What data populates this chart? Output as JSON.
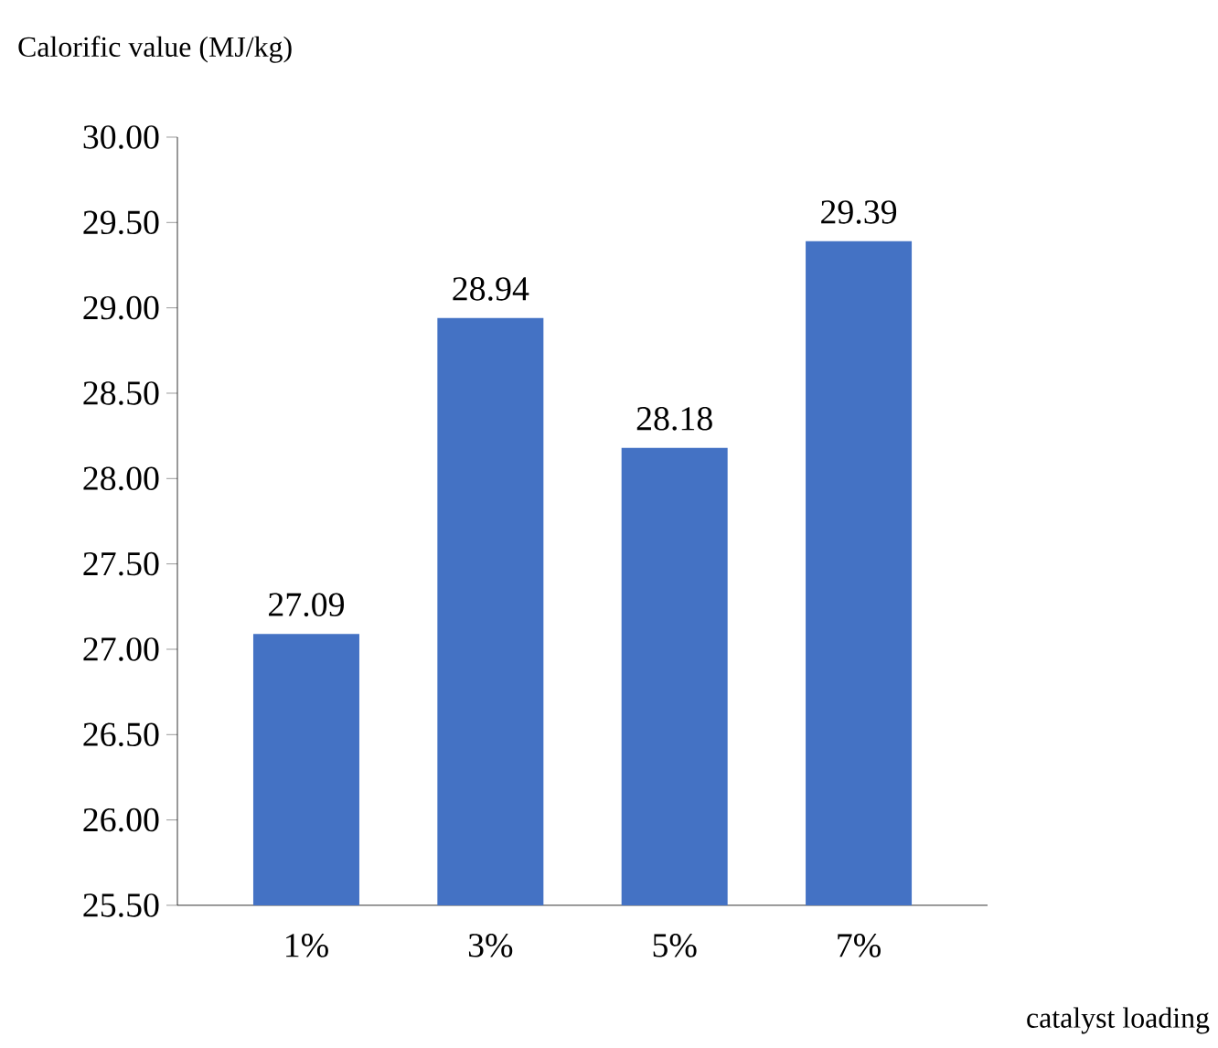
{
  "chart_data": {
    "type": "bar",
    "xlabel": "catalyst loading",
    "ylabel": "Calorific value (MJ/kg)",
    "categories": [
      "1%",
      "3%",
      "5%",
      "7%"
    ],
    "values": [
      27.09,
      28.94,
      28.18,
      29.39
    ],
    "value_labels": [
      "27.09",
      "28.94",
      "28.18",
      "29.39"
    ],
    "color": "#4472c4",
    "ylim": [
      25.5,
      30.0
    ],
    "yticks": [
      {
        "value": 25.5,
        "label": "25.50"
      },
      {
        "value": 26.0,
        "label": "26.00"
      },
      {
        "value": 26.5,
        "label": "26.50"
      },
      {
        "value": 27.0,
        "label": "27.00"
      },
      {
        "value": 27.5,
        "label": "27.50"
      },
      {
        "value": 28.0,
        "label": "28.00"
      },
      {
        "value": 28.5,
        "label": "28.50"
      },
      {
        "value": 29.0,
        "label": "29.00"
      },
      {
        "value": 29.5,
        "label": "29.50"
      },
      {
        "value": 30.0,
        "label": "30.00"
      }
    ]
  }
}
